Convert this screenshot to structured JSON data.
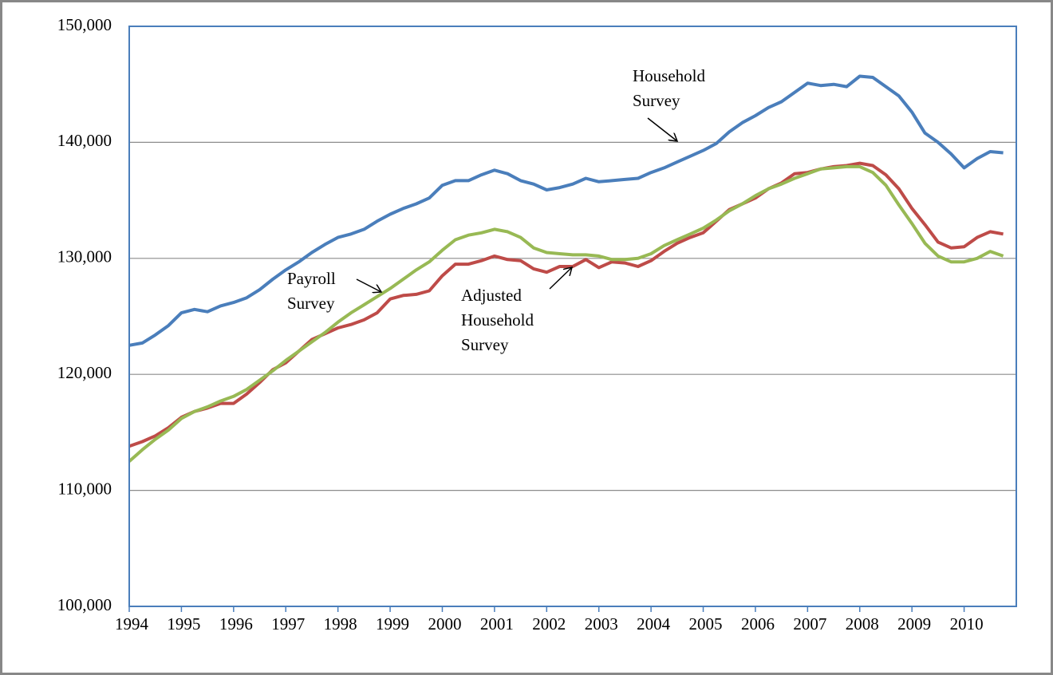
{
  "chart_data": {
    "type": "line",
    "x": [
      1994,
      1994.25,
      1994.5,
      1994.75,
      1995,
      1995.25,
      1995.5,
      1995.75,
      1996,
      1996.25,
      1996.5,
      1996.75,
      1997,
      1997.25,
      1997.5,
      1997.75,
      1998,
      1998.25,
      1998.5,
      1998.75,
      1999,
      1999.25,
      1999.5,
      1999.75,
      2000,
      2000.25,
      2000.5,
      2000.75,
      2001,
      2001.25,
      2001.5,
      2001.75,
      2002,
      2002.25,
      2002.5,
      2002.75,
      2003,
      2003.25,
      2003.5,
      2003.75,
      2004,
      2004.25,
      2004.5,
      2004.75,
      2005,
      2005.25,
      2005.5,
      2005.75,
      2006,
      2006.25,
      2006.5,
      2006.75,
      2007,
      2007.25,
      2007.5,
      2007.75,
      2008,
      2008.25,
      2008.5,
      2008.75,
      2009,
      2009.25,
      2009.5,
      2009.75,
      2010,
      2010.25,
      2010.5,
      2010.75
    ],
    "series": [
      {
        "name": "Household Survey",
        "color": "#4a7ebb",
        "values": [
          122500,
          122700,
          123400,
          124200,
          125300,
          125600,
          125400,
          125900,
          126200,
          126600,
          127300,
          128200,
          129000,
          129700,
          130500,
          131200,
          131800,
          132100,
          132500,
          133200,
          133800,
          134300,
          134700,
          135200,
          136300,
          136700,
          136700,
          137200,
          137600,
          137300,
          136700,
          136400,
          135900,
          136100,
          136400,
          136900,
          136600,
          136700,
          136800,
          136900,
          137400,
          137800,
          138300,
          138800,
          139300,
          139900,
          140900,
          141700,
          142300,
          143000,
          143500,
          144300,
          145100,
          144900,
          145000,
          144800,
          145700,
          145600,
          144800,
          144000,
          142600,
          140800,
          140000,
          139000,
          137800,
          138600,
          139200,
          139100
        ]
      },
      {
        "name": "Adjusted Household Survey",
        "color": "#be4b48",
        "values": [
          113800,
          114200,
          114700,
          115400,
          116300,
          116800,
          117100,
          117500,
          117500,
          118300,
          119300,
          120400,
          121000,
          122000,
          123000,
          123500,
          124000,
          124300,
          124700,
          125300,
          126500,
          126800,
          126900,
          127200,
          128500,
          129500,
          129500,
          129800,
          130200,
          129900,
          129800,
          129100,
          128800,
          129300,
          129300,
          129900,
          129200,
          129700,
          129600,
          129300,
          129800,
          130600,
          131300,
          131800,
          132200,
          133200,
          134200,
          134700,
          135200,
          136000,
          136500,
          137300,
          137400,
          137700,
          137900,
          138000,
          138200,
          138000,
          137200,
          136000,
          134300,
          132900,
          131400,
          130900,
          131000,
          131800,
          132300,
          132100
        ]
      },
      {
        "name": "Payroll Survey",
        "color": "#98b954",
        "values": [
          112500,
          113500,
          114400,
          115200,
          116200,
          116800,
          117200,
          117700,
          118100,
          118700,
          119500,
          120300,
          121200,
          122000,
          122800,
          123600,
          124500,
          125300,
          126000,
          126700,
          127400,
          128200,
          129000,
          129700,
          130700,
          131600,
          132000,
          132200,
          132500,
          132300,
          131800,
          130900,
          130500,
          130400,
          130300,
          130300,
          130200,
          129900,
          129900,
          130000,
          130400,
          131100,
          131600,
          132100,
          132600,
          133300,
          134100,
          134700,
          135400,
          136000,
          136400,
          136900,
          137300,
          137700,
          137800,
          137900,
          137900,
          137400,
          136300,
          134600,
          133000,
          131300,
          130200,
          129700,
          129700,
          130000,
          130600,
          130200
        ]
      }
    ],
    "annotations": [
      [
        "Household",
        "Survey"
      ],
      [
        "Payroll",
        "Survey"
      ],
      [
        "Adjusted",
        "Household",
        "Survey"
      ]
    ],
    "xlim": [
      1994,
      2011
    ],
    "xticks": [
      1994,
      1995,
      1996,
      1997,
      1998,
      1999,
      2000,
      2001,
      2002,
      2003,
      2004,
      2005,
      2006,
      2007,
      2008,
      2009,
      2010
    ],
    "ylim": [
      100000,
      150000
    ],
    "yticks": [
      {
        "value": 100000,
        "label": "100,000"
      },
      {
        "value": 110000,
        "label": "110,000"
      },
      {
        "value": 120000,
        "label": "120,000"
      },
      {
        "value": 130000,
        "label": "130,000"
      },
      {
        "value": 140000,
        "label": "140,000"
      },
      {
        "value": 150000,
        "label": "150,000"
      }
    ],
    "grid": true
  }
}
